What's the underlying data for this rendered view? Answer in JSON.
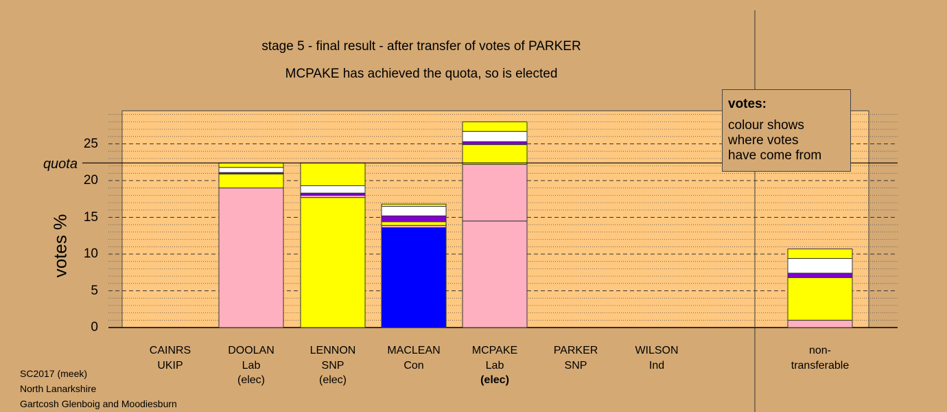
{
  "title_line1": "stage 5 - final result - after transfer of votes of PARKER",
  "title_line2": "MCPAKE has achieved the quota, so is elected",
  "legend": {
    "heading": "votes:",
    "text": "colour shows\nwhere votes\nhave come from"
  },
  "footer": [
    "SC2017 (meek)",
    "North Lanarkshire",
    "Gartcosh Glenboig and Moodiesburn"
  ],
  "colors": {
    "background": "#d4a974",
    "plot_area": "#ffc880",
    "Lab": "#ffb0c0",
    "SNP": "#ffff00",
    "Con": "#0000ff",
    "UKIP": "#8000d0",
    "Ind": "#ffffff"
  },
  "chart_data": {
    "type": "bar",
    "stacked": true,
    "ylabel": "votes %",
    "ylim": [
      0,
      29.5
    ],
    "yticks": [
      0,
      5,
      10,
      15,
      20,
      25
    ],
    "quota": 22.4,
    "quota_label": "quota",
    "candidates": [
      {
        "name": "CAINRS",
        "party": "UKIP",
        "status": "",
        "segments": []
      },
      {
        "name": "DOOLAN",
        "party": "Lab",
        "status": "(elec)",
        "segments": [
          {
            "from": "Lab",
            "value": 19.0
          },
          {
            "from": "SNP",
            "value": 1.9
          },
          {
            "from": "UKIP",
            "value": 0.2
          },
          {
            "from": "Ind",
            "value": 0.7
          },
          {
            "from": "SNP",
            "value": 0.6
          }
        ]
      },
      {
        "name": "LENNON",
        "party": "SNP",
        "status": "(elec)",
        "segments": [
          {
            "from": "SNP",
            "value": 17.7
          },
          {
            "from": "Lab",
            "value": 0.3
          },
          {
            "from": "UKIP",
            "value": 0.3
          },
          {
            "from": "Ind",
            "value": 1.0
          },
          {
            "from": "SNP",
            "value": 3.1
          }
        ]
      },
      {
        "name": "MACLEAN",
        "party": "Con",
        "status": "",
        "segments": [
          {
            "from": "Con",
            "value": 13.6
          },
          {
            "from": "Lab",
            "value": 0.3
          },
          {
            "from": "SNP",
            "value": 0.5
          },
          {
            "from": "UKIP",
            "value": 0.8
          },
          {
            "from": "Ind",
            "value": 1.3
          },
          {
            "from": "SNP",
            "value": 0.3
          }
        ]
      },
      {
        "name": "MCPAKE",
        "party": "Lab",
        "status": "(elec)",
        "segments": [
          {
            "from": "Lab",
            "value": 14.5
          },
          {
            "from": "Lab",
            "value": 7.7
          },
          {
            "from": "SNP",
            "value": 2.7
          },
          {
            "from": "UKIP",
            "value": 0.4
          },
          {
            "from": "Ind",
            "value": 1.4
          },
          {
            "from": "SNP",
            "value": 1.3
          }
        ]
      },
      {
        "name": "PARKER",
        "party": "SNP",
        "status": "",
        "segments": []
      },
      {
        "name": "WILSON",
        "party": "Ind",
        "status": "",
        "segments": []
      }
    ],
    "non_transferable": {
      "label": "non-\ntransferable",
      "segments": [
        {
          "from": "Lab",
          "value": 1.0
        },
        {
          "from": "SNP",
          "value": 5.8
        },
        {
          "from": "UKIP",
          "value": 0.6
        },
        {
          "from": "Ind",
          "value": 2.0
        },
        {
          "from": "SNP",
          "value": 1.3
        }
      ]
    }
  }
}
